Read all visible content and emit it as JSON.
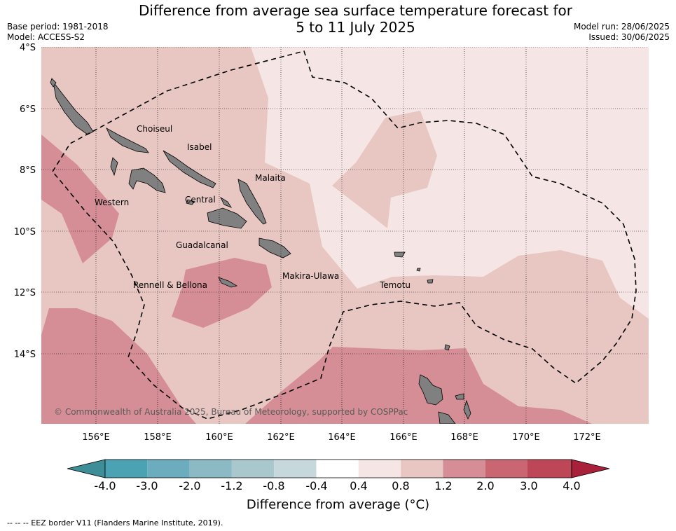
{
  "header": {
    "title_line1": "Difference from average sea surface temperature forecast for",
    "title_line2": "5 to 11 July 2025",
    "base_period": "Base period: 1981-2018",
    "model": "Model: ACCESS-S2",
    "model_run": "Model run: 28/06/2025",
    "issued": "Issued: 30/06/2025"
  },
  "map": {
    "lat_labels": [
      "4°S",
      "6°S",
      "8°S",
      "10°S",
      "12°S",
      "14°S"
    ],
    "lon_labels": [
      "156°E",
      "158°E",
      "160°E",
      "162°E",
      "164°E",
      "166°E",
      "168°E",
      "170°E",
      "172°E"
    ],
    "places": [
      "Choiseul",
      "Isabel",
      "Malaita",
      "Western",
      "Central",
      "Guadalcanal",
      "Makira-Ulawa",
      "Rennell & Bellona",
      "Temotu"
    ],
    "copyright": "© Commonwealth of Australia 2025, Bureau of Meteorology, supported by COSPPac",
    "colors": {
      "bin_0.4_0.8": "#f5e6e5",
      "bin_0.8_1.2": "#e8c7c3",
      "bin_1.2_2.0": "#d68e96",
      "land": "#808080"
    }
  },
  "colorbar": {
    "ticks": [
      "-4.0",
      "-3.0",
      "-2.0",
      "-1.2",
      "-0.8",
      "-0.4",
      "0.4",
      "0.8",
      "1.2",
      "2.0",
      "3.0",
      "4.0"
    ],
    "colors": [
      "#3d8e97",
      "#4aa2b3",
      "#6badbe",
      "#8cbac4",
      "#a8c8cd",
      "#c7d8dc",
      "#ffffff",
      "#f5e6e5",
      "#e8c7c3",
      "#d68e96",
      "#c96672",
      "#bd4757",
      "#a8203a"
    ],
    "title": "Difference from average (°C)"
  },
  "footnote": "--  --  -- EEZ border V11 (Flanders Marine Institute, 2019)."
}
